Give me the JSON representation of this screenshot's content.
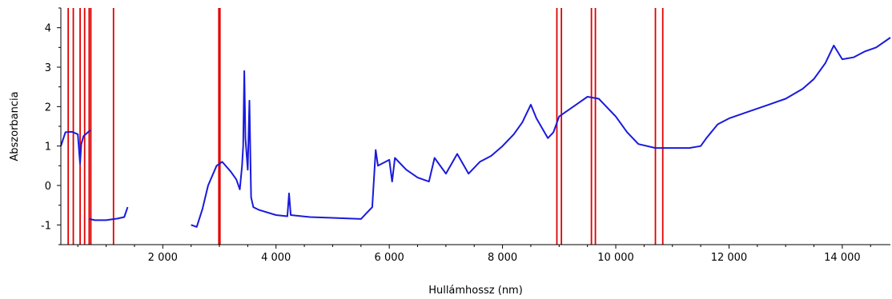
{
  "chart_data": {
    "type": "line",
    "title": "",
    "xlabel": "Hullámhossz (nm)",
    "ylabel": "Abszorbancia",
    "xlim": [
      200,
      14850
    ],
    "ylim": [
      -1.5,
      4.5
    ],
    "x_ticks": [
      {
        "value": 2000,
        "label": "2 000"
      },
      {
        "value": 4000,
        "label": "4 000"
      },
      {
        "value": 6000,
        "label": "6 000"
      },
      {
        "value": 8000,
        "label": "8 000"
      },
      {
        "value": 10000,
        "label": "10 000"
      },
      {
        "value": 12000,
        "label": "12 000"
      },
      {
        "value": 14000,
        "label": "14 000"
      }
    ],
    "y_ticks": [
      {
        "value": -1,
        "label": "-1"
      },
      {
        "value": 0,
        "label": "0"
      },
      {
        "value": 1,
        "label": "1"
      },
      {
        "value": 2,
        "label": "2"
      },
      {
        "value": 3,
        "label": "3"
      },
      {
        "value": 4,
        "label": "4"
      }
    ],
    "grid": false,
    "legend": "none",
    "colors": {
      "spectra": "#1a1adc",
      "markers": "#e00000",
      "axis": "#000000"
    },
    "marker_lines_x": [
      330,
      420,
      540,
      620,
      700,
      730,
      1130,
      2990,
      3010,
      8960,
      9040,
      9570,
      9640,
      10700,
      10830
    ],
    "series": [
      {
        "segments": [
          [
            [
              200,
              1.0
            ],
            [
              280,
              1.35
            ],
            [
              400,
              1.36
            ],
            [
              500,
              1.3
            ],
            [
              540,
              0.55
            ],
            [
              560,
              1.05
            ],
            [
              600,
              1.25
            ],
            [
              640,
              1.3
            ],
            [
              680,
              1.35
            ],
            [
              720,
              1.4
            ]
          ],
          [
            [
              700,
              -0.85
            ],
            [
              800,
              -0.88
            ],
            [
              1000,
              -0.88
            ],
            [
              1200,
              -0.84
            ],
            [
              1320,
              -0.8
            ],
            [
              1380,
              -0.55
            ]
          ],
          [
            [
              2500,
              -1.0
            ],
            [
              2600,
              -1.05
            ],
            [
              2700,
              -0.6
            ],
            [
              2800,
              0.0
            ],
            [
              2950,
              0.5
            ],
            [
              3050,
              0.6
            ],
            [
              3200,
              0.35
            ],
            [
              3300,
              0.15
            ],
            [
              3360,
              -0.1
            ],
            [
              3400,
              0.5
            ],
            [
              3420,
              1.0
            ],
            [
              3440,
              2.9
            ],
            [
              3460,
              1.2
            ],
            [
              3500,
              0.4
            ],
            [
              3530,
              2.15
            ],
            [
              3560,
              -0.3
            ],
            [
              3600,
              -0.55
            ],
            [
              3700,
              -0.62
            ],
            [
              4000,
              -0.75
            ],
            [
              4200,
              -0.78
            ],
            [
              4230,
              -0.2
            ],
            [
              4260,
              -0.75
            ],
            [
              4600,
              -0.8
            ],
            [
              5000,
              -0.82
            ],
            [
              5500,
              -0.85
            ],
            [
              5700,
              -0.55
            ],
            [
              5760,
              0.9
            ],
            [
              5800,
              0.5
            ],
            [
              6000,
              0.65
            ],
            [
              6050,
              0.1
            ],
            [
              6100,
              0.7
            ],
            [
              6300,
              0.4
            ],
            [
              6500,
              0.2
            ],
            [
              6700,
              0.1
            ],
            [
              6800,
              0.7
            ],
            [
              7000,
              0.3
            ],
            [
              7200,
              0.8
            ],
            [
              7400,
              0.3
            ],
            [
              7600,
              0.6
            ],
            [
              7800,
              0.75
            ],
            [
              8000,
              1.0
            ],
            [
              8200,
              1.3
            ],
            [
              8350,
              1.6
            ],
            [
              8500,
              2.05
            ],
            [
              8600,
              1.7
            ],
            [
              8800,
              1.2
            ],
            [
              8900,
              1.35
            ],
            [
              9000,
              1.75
            ],
            [
              9200,
              1.95
            ],
            [
              9500,
              2.25
            ],
            [
              9700,
              2.2
            ],
            [
              10000,
              1.75
            ],
            [
              10200,
              1.35
            ],
            [
              10400,
              1.05
            ],
            [
              10700,
              0.95
            ],
            [
              11000,
              0.95
            ],
            [
              11300,
              0.95
            ],
            [
              11500,
              1.0
            ],
            [
              11600,
              1.2
            ],
            [
              11800,
              1.55
            ],
            [
              12000,
              1.7
            ],
            [
              12300,
              1.85
            ],
            [
              12700,
              2.05
            ],
            [
              13000,
              2.2
            ],
            [
              13300,
              2.45
            ],
            [
              13500,
              2.7
            ],
            [
              13700,
              3.1
            ],
            [
              13850,
              3.55
            ],
            [
              14000,
              3.2
            ],
            [
              14200,
              3.25
            ],
            [
              14400,
              3.4
            ],
            [
              14600,
              3.5
            ],
            [
              14850,
              3.75
            ]
          ]
        ]
      }
    ]
  }
}
